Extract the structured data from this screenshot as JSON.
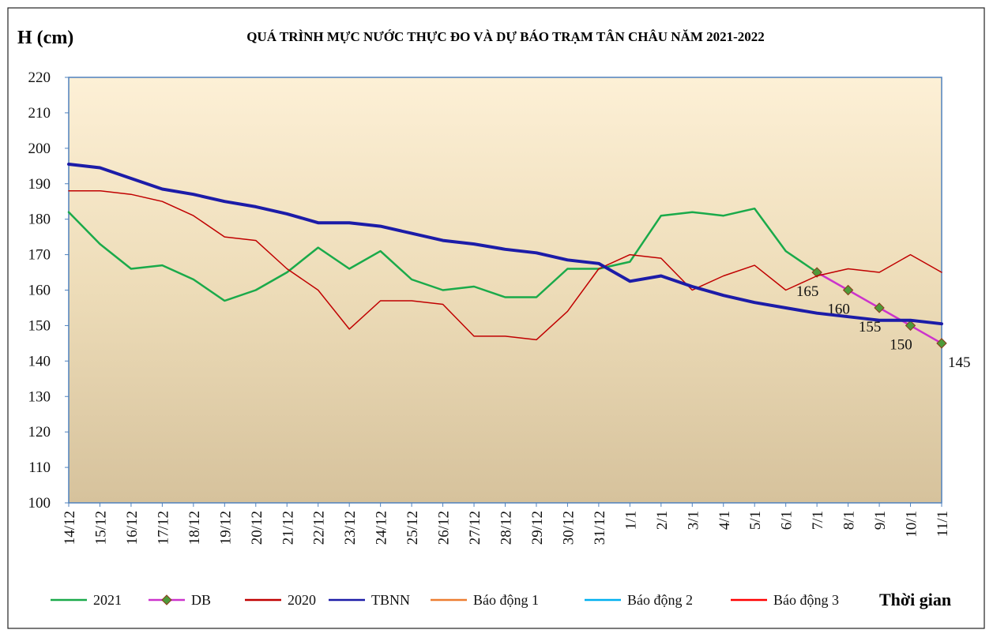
{
  "chart_data": {
    "type": "line",
    "title": "QUÁ TRÌNH MỰC NƯỚC THỰC ĐO VÀ DỰ BÁO TRẠM TÂN CHÂU NĂM 2021-2022",
    "y_label": "H (cm)",
    "x_label": "Thời gian",
    "categories": [
      "14/12",
      "15/12",
      "16/12",
      "17/12",
      "18/12",
      "19/12",
      "20/12",
      "21/12",
      "22/12",
      "23/12",
      "24/12",
      "25/12",
      "26/12",
      "27/12",
      "28/12",
      "29/12",
      "30/12",
      "31/12",
      "1/1",
      "2/1",
      "3/1",
      "4/1",
      "5/1",
      "6/1",
      "7/1",
      "8/1",
      "9/1",
      "10/1",
      "11/1"
    ],
    "ylim": [
      100,
      220
    ],
    "yticks": [
      100,
      110,
      120,
      130,
      140,
      150,
      160,
      170,
      180,
      190,
      200,
      210,
      220
    ],
    "grid": false,
    "legend": "bottom",
    "series": [
      {
        "name": "2021",
        "color": "#1aaa4a",
        "values": [
          182,
          173,
          166,
          167,
          163,
          157,
          160,
          165,
          172,
          166,
          171,
          163,
          160,
          161,
          158,
          158,
          166,
          166,
          168,
          181,
          182,
          181,
          183,
          171,
          165,
          null,
          null,
          null,
          null
        ]
      },
      {
        "name": "DB",
        "color": "#cc33cc",
        "marker": "diamond",
        "marker_color": "#4e9a3a",
        "data_labels": true,
        "values": [
          null,
          null,
          null,
          null,
          null,
          null,
          null,
          null,
          null,
          null,
          null,
          null,
          null,
          null,
          null,
          null,
          null,
          null,
          null,
          null,
          null,
          null,
          null,
          null,
          165,
          160,
          155,
          150,
          145
        ]
      },
      {
        "name": "2020",
        "color": "#c00000",
        "values": [
          188,
          188,
          187,
          185,
          181,
          175,
          174,
          166,
          160,
          149,
          157,
          157,
          156,
          147,
          147,
          146,
          154,
          166,
          170,
          169,
          160,
          164,
          167,
          160,
          164,
          166,
          165,
          170,
          165
        ]
      },
      {
        "name": "TBNN",
        "color": "#1c1ca8",
        "values": [
          195.5,
          194.5,
          191.5,
          188.5,
          187,
          185,
          183.5,
          181.5,
          179,
          179,
          178,
          176,
          174,
          173,
          171.5,
          170.5,
          168.5,
          167.5,
          162.5,
          164,
          161,
          158.5,
          156.5,
          155,
          153.5,
          152.5,
          151.5,
          151.5,
          150.5
        ]
      },
      {
        "name": "Báo động 1",
        "color": "#ed7d31",
        "values": [
          null,
          null,
          null,
          null,
          null,
          null,
          null,
          null,
          null,
          null,
          null,
          null,
          null,
          null,
          null,
          null,
          null,
          null,
          null,
          null,
          null,
          null,
          null,
          null,
          null,
          null,
          null,
          null,
          null
        ]
      },
      {
        "name": "Báo động 2",
        "color": "#00b0f0",
        "values": [
          null,
          null,
          null,
          null,
          null,
          null,
          null,
          null,
          null,
          null,
          null,
          null,
          null,
          null,
          null,
          null,
          null,
          null,
          null,
          null,
          null,
          null,
          null,
          null,
          null,
          null,
          null,
          null,
          null
        ]
      },
      {
        "name": "Báo động 3",
        "color": "#ff0000",
        "values": [
          null,
          null,
          null,
          null,
          null,
          null,
          null,
          null,
          null,
          null,
          null,
          null,
          null,
          null,
          null,
          null,
          null,
          null,
          null,
          null,
          null,
          null,
          null,
          null,
          null,
          null,
          null,
          null,
          null
        ]
      }
    ]
  }
}
